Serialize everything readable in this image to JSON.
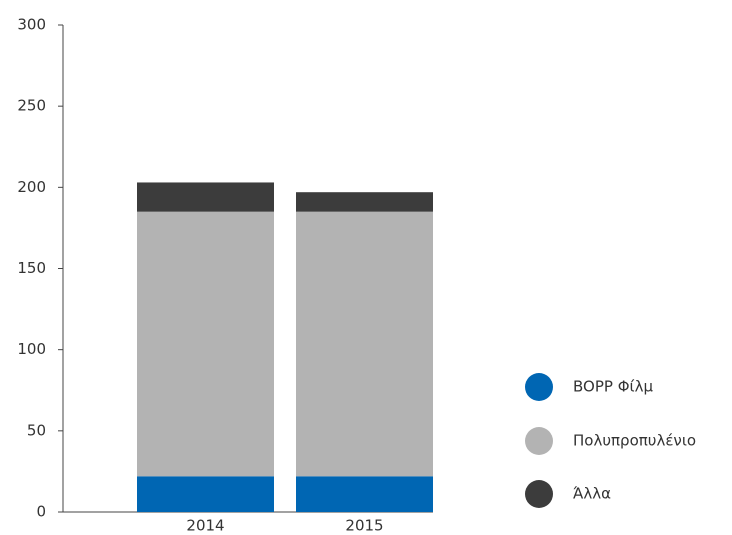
{
  "chart_data": {
    "type": "stacked_bar",
    "categories": [
      "2014",
      "2015"
    ],
    "series": [
      {
        "name": "BOPP Φίλμ",
        "color": "#0066b3",
        "values": [
          22,
          22
        ]
      },
      {
        "name": "Πολυπροπυλένιο",
        "color": "#b3b3b3",
        "values": [
          163,
          163
        ]
      },
      {
        "name": "Άλλα",
        "color": "#3c3c3c",
        "values": [
          18,
          12
        ]
      }
    ],
    "ylim": [
      0,
      300
    ],
    "yticks": [
      0,
      50,
      100,
      150,
      200,
      250,
      300
    ],
    "legend": "right"
  }
}
